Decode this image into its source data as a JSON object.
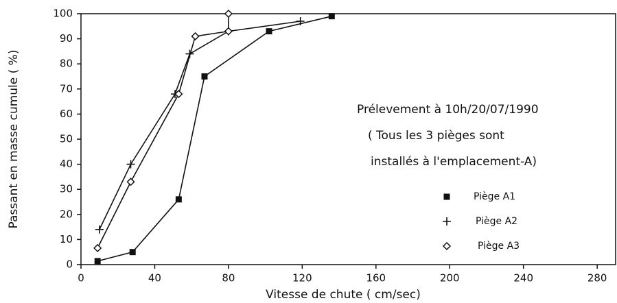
{
  "chart_data": {
    "type": "line",
    "xlabel": "Vitesse de chute ( cm/sec)",
    "ylabel": "Passant en masse cumule ( %)",
    "annotations": [
      "Prélevement à 10h/20/07/1990",
      "( Tous les 3 pièges sont",
      "installés à l'emplacement-A)"
    ],
    "xlim": [
      0,
      290
    ],
    "ylim": [
      0,
      100
    ],
    "xticks": [
      0,
      40,
      80,
      120,
      160,
      200,
      240,
      280
    ],
    "yticks": [
      0,
      10,
      20,
      30,
      40,
      50,
      60,
      70,
      80,
      90,
      100
    ],
    "series": [
      {
        "name": "Piège A1",
        "color": "#111111",
        "marker": "square",
        "x": [
          9,
          28,
          53,
          67,
          102,
          136
        ],
        "values": [
          1.4,
          5,
          26,
          75,
          93,
          99
        ]
      },
      {
        "name": "Piège A2",
        "color": "#111111",
        "marker": "plus",
        "x": [
          10,
          27,
          51,
          59,
          80,
          119
        ],
        "values": [
          14,
          40,
          68,
          84,
          93,
          97
        ]
      },
      {
        "name": "Piège A3",
        "color": "#111111",
        "marker": "diamond",
        "x": [
          9,
          27,
          53,
          62,
          80,
          80
        ],
        "values": [
          6.6,
          33,
          68,
          91,
          93,
          100
        ]
      }
    ]
  }
}
